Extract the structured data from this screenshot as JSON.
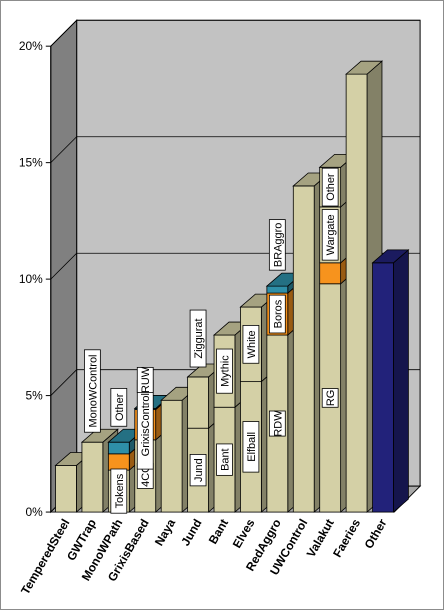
{
  "chart_data": {
    "type": "bar",
    "stacked": true,
    "grid": true,
    "three_d": true,
    "legend": "none",
    "ylim": [
      0,
      20
    ],
    "yticks": [
      "0%",
      "5%",
      "10%",
      "15%",
      "20%"
    ],
    "categories": [
      "TemperedSteel",
      "GWTrap",
      "MonoWPath",
      "GrixisBased",
      "Naya",
      "Jund",
      "Bant",
      "Elves",
      "RedAggro",
      "UWControl",
      "Valakut",
      "Faeries",
      "Other"
    ],
    "colors": {
      "base": "#d4d0a6",
      "orange": "#f7931d",
      "teal": "#2e8fa8",
      "navy": "#22227a",
      "wall_back": "#c2c2c2",
      "wall_side": "#808080",
      "floor": "#a8a8a8"
    },
    "bars": [
      {
        "category": "TemperedSteel",
        "segments": [
          {
            "value": 2.0,
            "color": "base"
          }
        ]
      },
      {
        "category": "GWTrap",
        "segments": [
          {
            "value": 3.0,
            "color": "base",
            "label": "MonoWControl"
          }
        ]
      },
      {
        "category": "MonoWPath",
        "segments": [
          {
            "value": 1.8,
            "color": "base",
            "label": "Tokens"
          },
          {
            "value": 0.7,
            "color": "orange"
          },
          {
            "value": 0.5,
            "color": "teal",
            "label": "Other"
          }
        ]
      },
      {
        "category": "GrixisBased",
        "segments": [
          {
            "value": 3.1,
            "color": "base",
            "label": "4CC"
          },
          {
            "value": 1.3,
            "color": "orange",
            "label": "GrixisControl"
          },
          {
            "value": 0.05,
            "color": "teal",
            "label": "RUW"
          }
        ]
      },
      {
        "category": "Naya",
        "segments": [
          {
            "value": 4.8,
            "color": "base"
          }
        ]
      },
      {
        "category": "Jund",
        "segments": [
          {
            "value": 3.6,
            "color": "base",
            "label": "Jund"
          },
          {
            "value": 2.2,
            "color": "base",
            "label": "Ziggurat"
          }
        ]
      },
      {
        "category": "Bant",
        "segments": [
          {
            "value": 4.5,
            "color": "base",
            "label": "Bant"
          },
          {
            "value": 3.1,
            "color": "base",
            "label": "Mythic"
          }
        ]
      },
      {
        "category": "Elves",
        "segments": [
          {
            "value": 5.6,
            "color": "base",
            "label": "Elfball"
          },
          {
            "value": 3.2,
            "color": "base",
            "label": "White"
          }
        ]
      },
      {
        "category": "RedAggro",
        "segments": [
          {
            "value": 7.6,
            "color": "base",
            "label": "RDW"
          },
          {
            "value": 1.8,
            "color": "orange",
            "label": "Boros"
          },
          {
            "value": 0.3,
            "color": "teal",
            "label": "BRAggro"
          }
        ]
      },
      {
        "category": "UWControl",
        "segments": [
          {
            "value": 14.0,
            "color": "base"
          }
        ]
      },
      {
        "category": "Valakut",
        "segments": [
          {
            "value": 9.8,
            "color": "base",
            "label": "RG"
          },
          {
            "value": 0.9,
            "color": "orange"
          },
          {
            "value": 2.4,
            "color": "base",
            "label": "Wargate"
          },
          {
            "value": 1.7,
            "color": "base",
            "label": "Other"
          }
        ]
      },
      {
        "category": "Faeries",
        "segments": [
          {
            "value": 18.8,
            "color": "base"
          }
        ]
      },
      {
        "category": "Other",
        "segments": [
          {
            "value": 10.7,
            "color": "navy"
          }
        ]
      }
    ]
  }
}
